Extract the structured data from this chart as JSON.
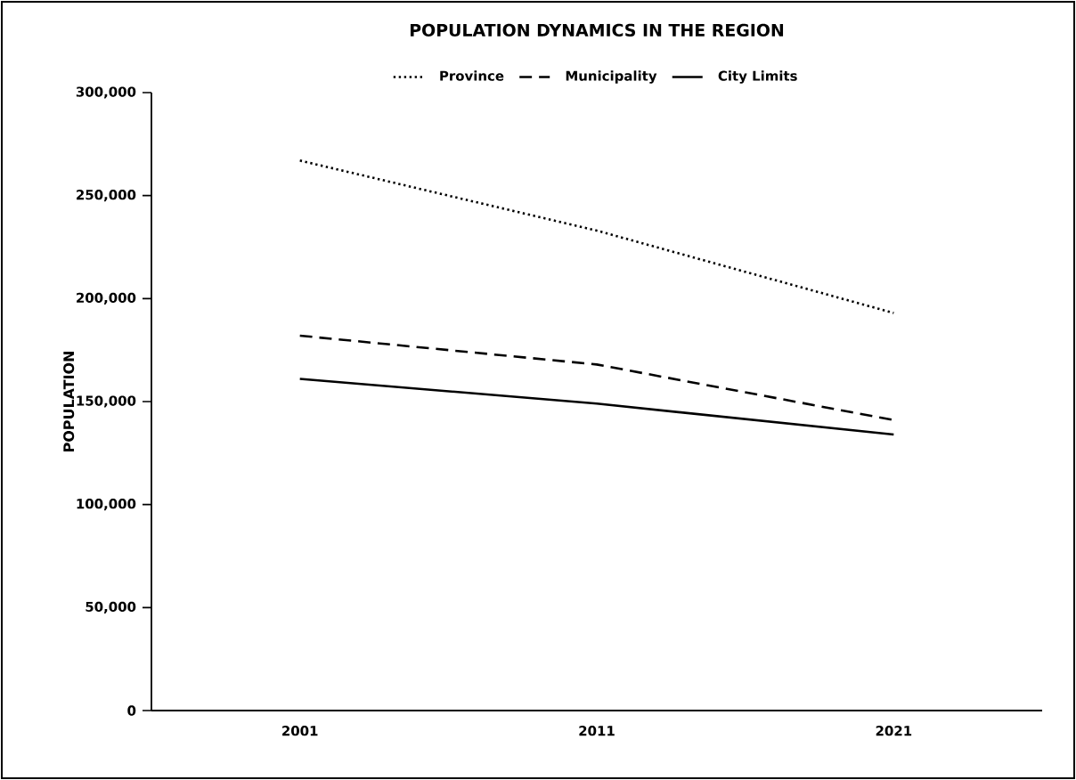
{
  "chart_data": {
    "type": "line",
    "title": "POPULATION DYNAMICS IN THE REGION",
    "ylabel": "POPULATION",
    "categories": [
      "2001",
      "2011",
      "2021"
    ],
    "series": [
      {
        "name": "Province",
        "color": "#000000",
        "line_style": "dotted",
        "values": [
          267000,
          233000,
          193000
        ]
      },
      {
        "name": "Municipality",
        "color": "#000000",
        "line_style": "dashed",
        "values": [
          182000,
          168000,
          141000
        ]
      },
      {
        "name": "City Limits",
        "color": "#000000",
        "line_style": "solid",
        "values": [
          161000,
          149000,
          134000
        ]
      }
    ],
    "ylim": [
      0,
      300000
    ],
    "yticks": [
      0,
      {
        "value": 50000,
        "label": "50,000"
      },
      {
        "value": 100000,
        "label": "100,000"
      },
      {
        "value": 150000,
        "label": "150,000"
      },
      {
        "value": 200000,
        "label": "200,000"
      },
      {
        "value": 250000,
        "label": "250,000"
      },
      {
        "value": 300000,
        "label": "300,000"
      }
    ],
    "legend": "top",
    "grid": false,
    "marker": "none"
  }
}
